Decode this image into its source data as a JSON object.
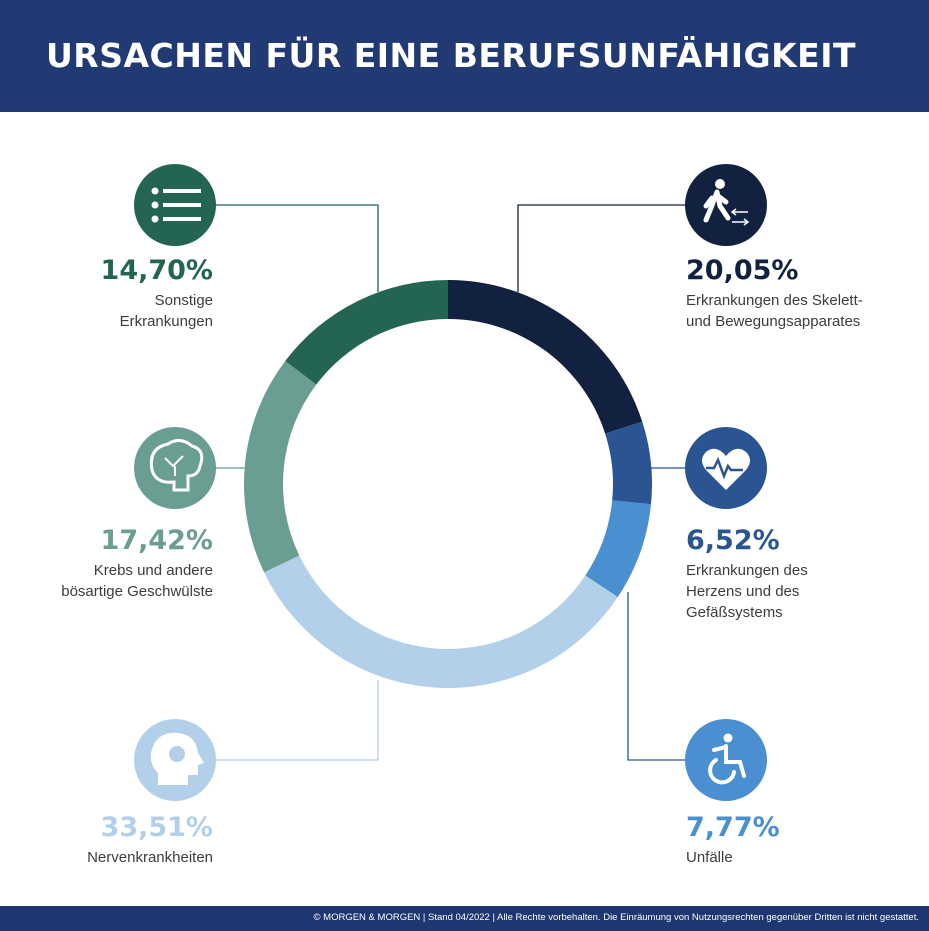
{
  "title": "URSACHEN FÜR EINE BERUFSUNFÄHIGKEIT",
  "footer": "© MORGEN & MORGEN | Stand 04/2022 | Alle Rechte vorbehalten. Die Einräumung von Nutzungsrechten gegenüber Dritten ist nicht gestattet.",
  "chart_data": {
    "type": "pie",
    "variant": "donut",
    "categories": [
      "Erkrankungen des Skelett- und Bewegungsapparates",
      "Erkrankungen des Herzens und des Gefäßsystems",
      "Unfälle",
      "Nervenkrankheiten",
      "Krebs und andere bösartige Geschwülste",
      "Sonstige Erkrankungen"
    ],
    "values": [
      20.05,
      6.52,
      7.77,
      33.51,
      17.42,
      14.7
    ],
    "colors": [
      "#12213f",
      "#2a5592",
      "#4a8fd0",
      "#b3d0ea",
      "#6a9e92",
      "#236452"
    ],
    "icons": [
      "walking-person-icon",
      "heart-pulse-icon",
      "wheelchair-icon",
      "head-icon",
      "brain-icon",
      "list-icon"
    ],
    "labels": [
      {
        "pct": "20,05%",
        "line1": "Erkrankungen des Skelett-",
        "line2": "und Bewegungsapparates"
      },
      {
        "pct": "6,52%",
        "line1": "Erkrankungen des",
        "line2": "Herzens und des",
        "line3": "Gefäßsystems"
      },
      {
        "pct": "7,77%",
        "line1": "Unfälle"
      },
      {
        "pct": "33,51%",
        "line1": "Nervenkrankheiten"
      },
      {
        "pct": "17,42%",
        "line1": "Krebs und andere",
        "line2": "bösartige Geschwülste"
      },
      {
        "pct": "14,70%",
        "line1": "Sonstige",
        "line2": "Erkrankungen"
      }
    ]
  }
}
